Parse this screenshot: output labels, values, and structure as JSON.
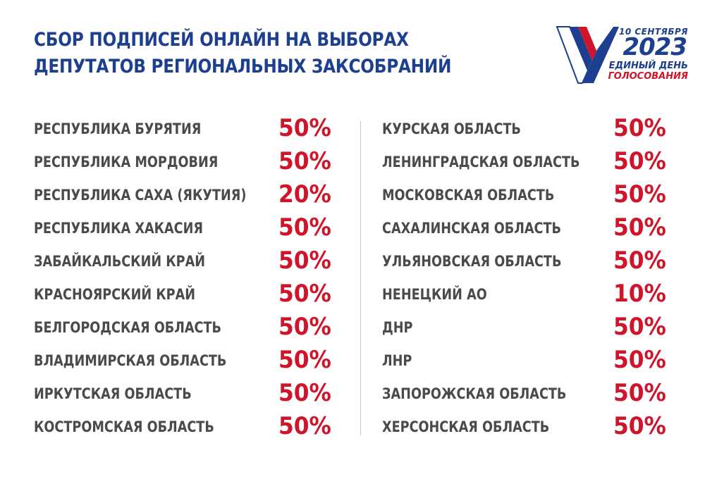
{
  "header": {
    "title_line1": "СБОР ПОДПИСЕЙ ОНЛАЙН НА ВЫБОРАХ",
    "title_line2": "ДЕПУТАТОВ РЕГИОНАЛЬНЫХ ЗАКСОБРАНИЙ"
  },
  "logo": {
    "date": "10 СЕНТЯБРЯ",
    "year": "2023",
    "line1": "ЕДИНЫЙ ДЕНЬ",
    "line2": "ГОЛОСОВАНИЯ"
  },
  "colors": {
    "title": "#1d3f8f",
    "region_text": "#4a4a4a",
    "percent": "#d0152b",
    "logo_white": "#ffffff",
    "logo_blue": "#1d3f8f",
    "logo_red": "#d0152b"
  },
  "regions_left": [
    {
      "name": "РЕСПУБЛИКА БУРЯТИЯ",
      "percent": "50%"
    },
    {
      "name": "РЕСПУБЛИКА МОРДОВИЯ",
      "percent": "50%"
    },
    {
      "name": "РЕСПУБЛИКА САХА (ЯКУТИЯ)",
      "percent": "20%"
    },
    {
      "name": "РЕСПУБЛИКА ХАКАСИЯ",
      "percent": "50%"
    },
    {
      "name": "ЗАБАЙКАЛЬСКИЙ КРАЙ",
      "percent": "50%"
    },
    {
      "name": "КРАСНОЯРСКИЙ КРАЙ",
      "percent": "50%"
    },
    {
      "name": "БЕЛГОРОДСКАЯ ОБЛАСТЬ",
      "percent": "50%"
    },
    {
      "name": "ВЛАДИМИРСКАЯ ОБЛАСТЬ",
      "percent": "50%"
    },
    {
      "name": "ИРКУТСКАЯ ОБЛАСТЬ",
      "percent": "50%"
    },
    {
      "name": "КОСТРОМСКАЯ ОБЛАСТЬ",
      "percent": "50%"
    }
  ],
  "regions_right": [
    {
      "name": "КУРСКАЯ ОБЛАСТЬ",
      "percent": "50%"
    },
    {
      "name": "ЛЕНИНГРАДСКАЯ ОБЛАСТЬ",
      "percent": "50%"
    },
    {
      "name": "МОСКОВСКАЯ ОБЛАСТЬ",
      "percent": "50%"
    },
    {
      "name": "САХАЛИНСКАЯ ОБЛАСТЬ",
      "percent": "50%"
    },
    {
      "name": "УЛЬЯНОВСКАЯ ОБЛАСТЬ",
      "percent": "50%"
    },
    {
      "name": "НЕНЕЦКИЙ АО",
      "percent": "10%"
    },
    {
      "name": "ДНР",
      "percent": "50%"
    },
    {
      "name": "ЛНР",
      "percent": "50%"
    },
    {
      "name": "ЗАПОРОЖСКАЯ ОБЛАСТЬ",
      "percent": "50%"
    },
    {
      "name": "ХЕРСОНСКАЯ ОБЛАСТЬ",
      "percent": "50%"
    }
  ]
}
